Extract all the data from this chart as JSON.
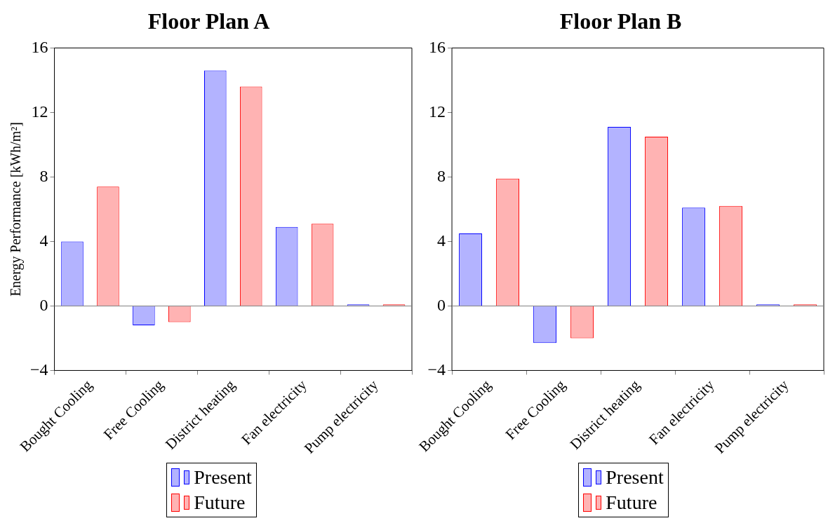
{
  "chart_data": [
    {
      "type": "bar",
      "title": "Floor Plan A",
      "ylabel": "Energy Performance [kWh/m²]",
      "categories": [
        "Bought Cooling",
        "Free Cooling",
        "District heating",
        "Fan electricity",
        "Pump electricity"
      ],
      "series": [
        {
          "name": "Present",
          "color": "#b3b3ff",
          "values": [
            4.0,
            -1.2,
            14.6,
            4.9,
            0.1
          ]
        },
        {
          "name": "Future",
          "color": "#ffb3b3",
          "values": [
            7.4,
            -1.0,
            13.6,
            5.1,
            0.1
          ]
        }
      ],
      "ylim": [
        -4,
        16
      ],
      "yticks": [
        {
          "value": -4,
          "label": "−4"
        },
        0,
        4,
        8,
        12,
        16
      ],
      "grid": false,
      "legend": "bottom",
      "ref_lines": [
        {
          "axis": "y",
          "value": 0,
          "color": "#808080"
        }
      ]
    },
    {
      "type": "bar",
      "title": "Floor Plan B",
      "categories": [
        "Bought Cooling",
        "Free Cooling",
        "District heating",
        "Fan electricity",
        "Pump electricity"
      ],
      "series": [
        {
          "name": "Present",
          "color": "#b3b3ff",
          "values": [
            4.5,
            -2.3,
            11.1,
            6.1,
            0.1
          ]
        },
        {
          "name": "Future",
          "color": "#ffb3b3",
          "values": [
            7.9,
            -2.0,
            10.5,
            6.2,
            0.1
          ]
        }
      ],
      "ylim": [
        -4,
        16
      ],
      "yticks": [
        {
          "value": -4,
          "label": "−4"
        },
        0,
        4,
        8,
        12,
        16
      ],
      "grid": false,
      "legend": "bottom",
      "ref_lines": [
        {
          "axis": "y",
          "value": 0,
          "color": "#808080"
        }
      ]
    }
  ]
}
